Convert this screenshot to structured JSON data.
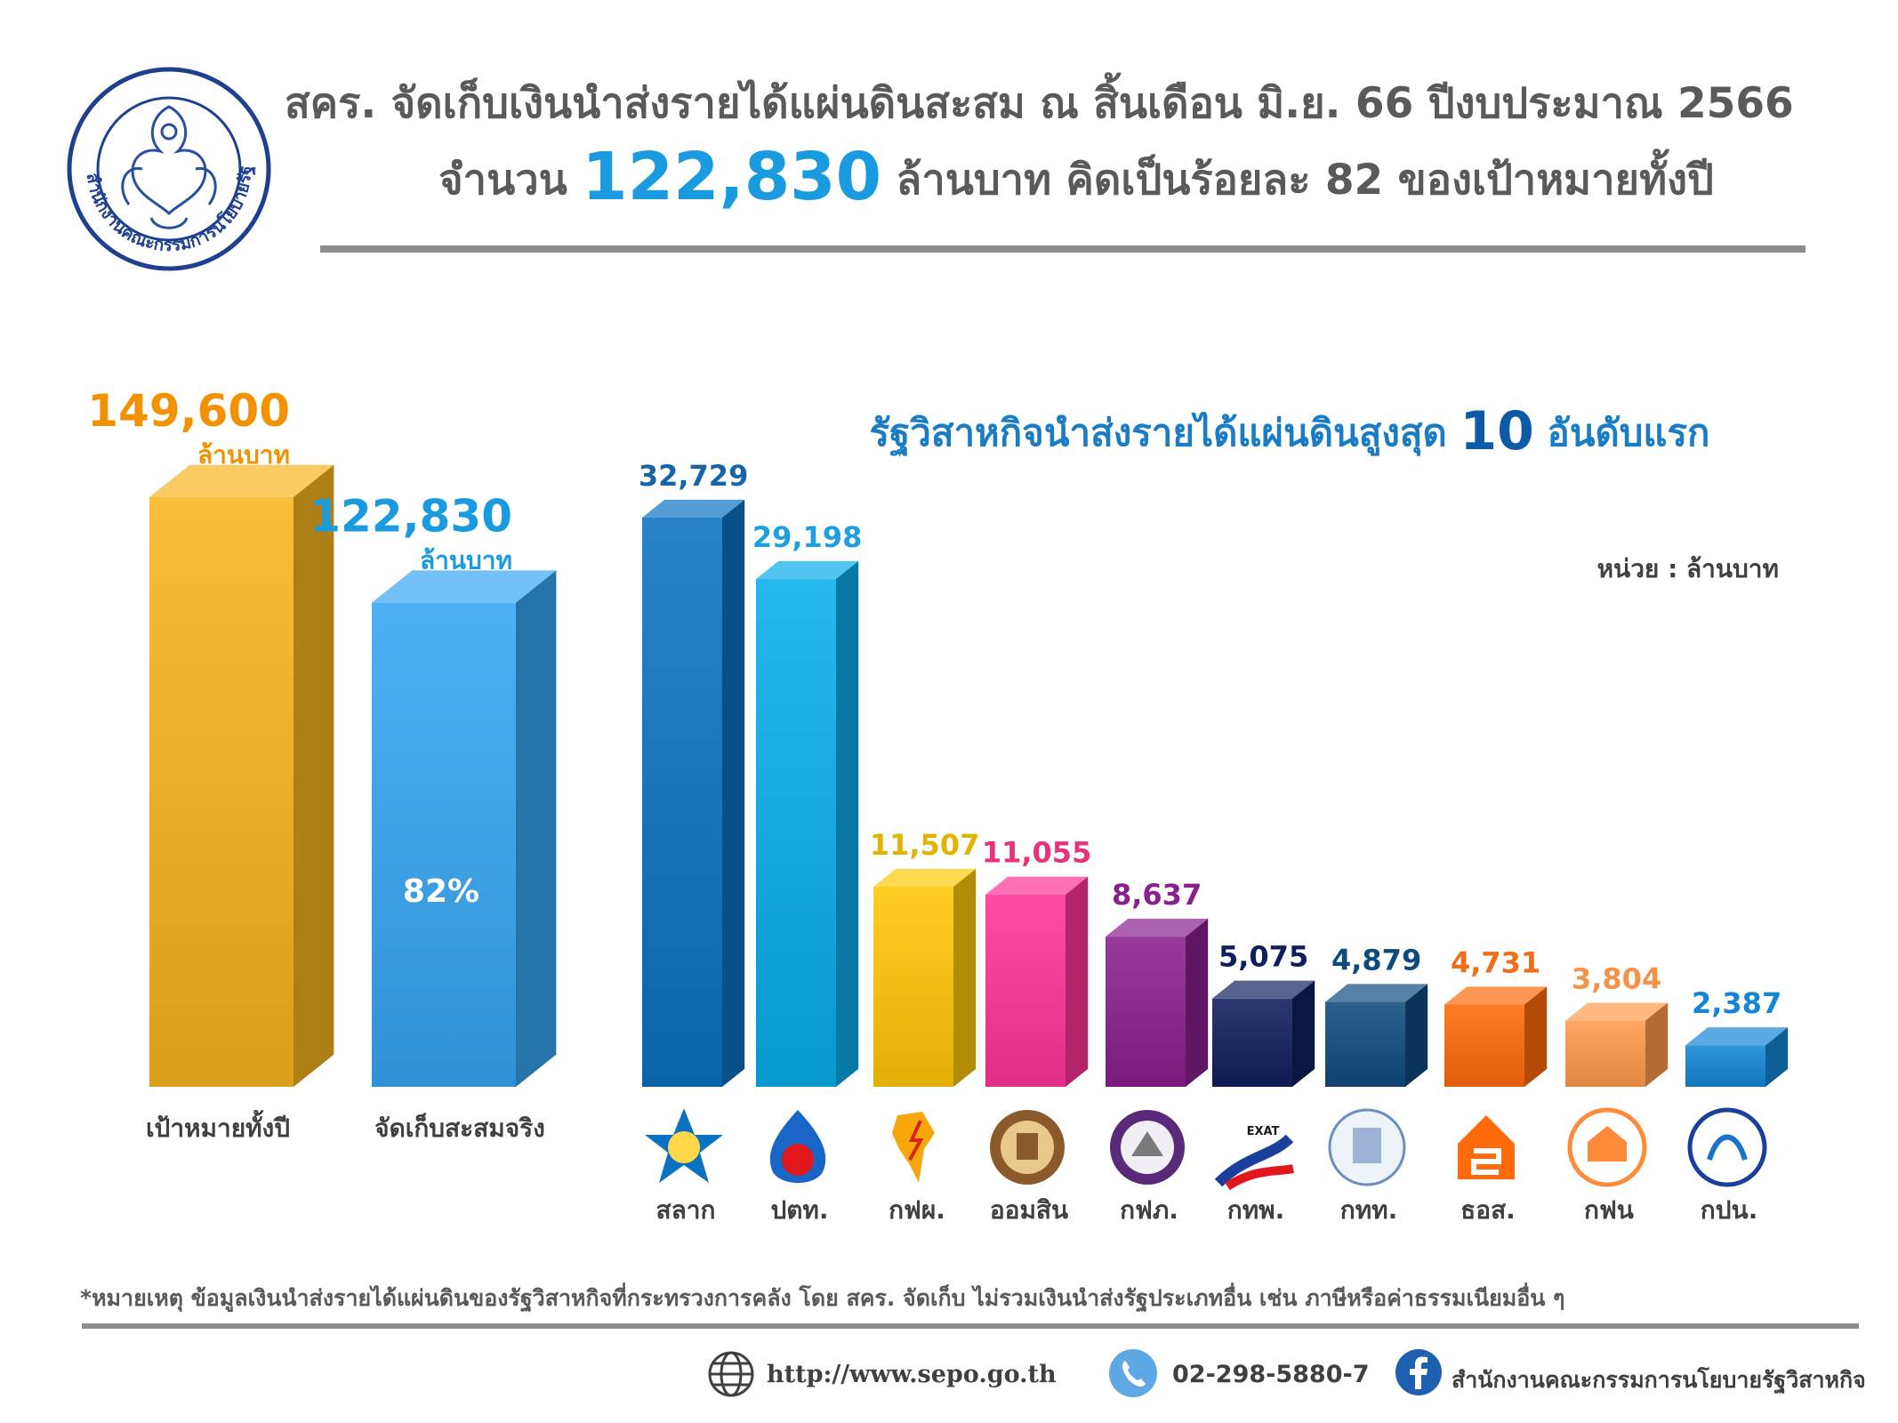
{
  "header": {
    "line1": "สคร. จัดเก็บเงินนำส่งรายได้แผ่นดินสะสม ณ สิ้นเดือน มิ.ย. 66 ปีงบประมาณ 2566",
    "line2_prefix": "จำนวน",
    "line2_amount": "122,830",
    "line2_suffix": "ล้านบาท คิดเป็นร้อยละ 82 ของเป้าหมายทั้งปี"
  },
  "logo": {
    "text": "สำนักงานคณะกรรมการนโยบายรัฐวิสาหกิจ"
  },
  "colors": {
    "header_text": "#5a5a5a",
    "accent_blue": "#1a9be0",
    "target_orange": "#f39200"
  },
  "chart_data": [
    {
      "type": "bar",
      "categories": [
        "เป้าหมายทั้งปี",
        "จัดเก็บสะสมจริง"
      ],
      "values": [
        149600,
        122830
      ],
      "value_labels": [
        "149,600",
        "122,830"
      ],
      "unit_label": "ล้านบาท",
      "inner_label": "82%",
      "colors": [
        "#f7b51f",
        "#36a6f2"
      ],
      "label_colors": [
        "#f39200",
        "#1a9be0"
      ]
    },
    {
      "type": "bar",
      "title_prefix": "รัฐวิสาหกิจนำส่งรายได้แผ่นดินสูงสุด",
      "title_number": "10",
      "title_suffix": "อันดับแรก",
      "unit_note": "หน่วย : ล้านบาท",
      "categories": [
        "สลาก",
        "ปตท.",
        "กฟผ.",
        "ออมสิน",
        "กฟภ.",
        "กทพ.",
        "กทท.",
        "ธอส.",
        "กฟน",
        "กปน."
      ],
      "values": [
        32729,
        29198,
        11507,
        11055,
        8637,
        5075,
        4879,
        4731,
        3804,
        2387
      ],
      "value_labels": [
        "32,729",
        "29,198",
        "11,507",
        "11,055",
        "8,637",
        "5,075",
        "4,879",
        "4,731",
        "3,804",
        "2,387"
      ],
      "colors": [
        "#0b72c1",
        "#08aeea",
        "#ffc808",
        "#ff3398",
        "#8a1f8e",
        "#0f1e5e",
        "#0f4a7e",
        "#ff6a0a",
        "#ff9a4a",
        "#1586d6"
      ],
      "label_colors": [
        "#1565a8",
        "#1d9fe0",
        "#e2b400",
        "#e8327c",
        "#8a1f8e",
        "#0f1e5e",
        "#0f4a7e",
        "#f06d1a",
        "#f4934a",
        "#1586d6"
      ],
      "icons": [
        "lottery-star-icon",
        "ptt-flame-icon",
        "egat-thailand-icon",
        "gsb-seal-icon",
        "pea-seal-icon",
        "exat-road-icon",
        "port-seal-icon",
        "ghb-house-icon",
        "mea-building-icon",
        "mwa-seal-icon"
      ],
      "icon_texts": [
        "",
        "",
        "",
        "",
        "",
        "EXAT",
        "",
        "",
        "",
        ""
      ]
    }
  ],
  "footnote": "*หมายเหตุ ข้อมูลเงินนำส่งรายได้แผ่นดินของรัฐวิสาหกิจที่กระทรวงการคลัง โดย สคร. จัดเก็บ ไม่รวมเงินนำส่งรัฐประเภทอื่น เช่น ภาษีหรือค่าธรรมเนียมอื่น ๆ",
  "footer": {
    "website": "http://www.sepo.go.th",
    "phone": "02-298-5880-7",
    "facebook": "สำนักงานคณะกรรมการนโยบายรัฐวิสาหกิจ"
  }
}
